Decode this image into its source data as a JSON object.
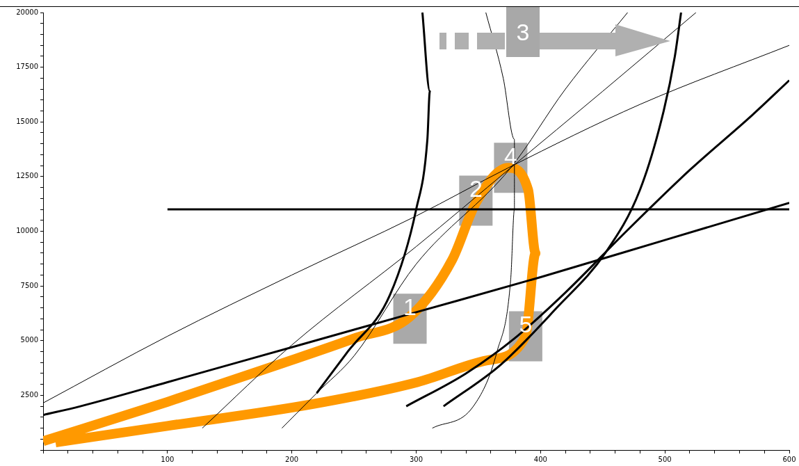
{
  "chart_data": {
    "type": "line",
    "xlim": [
      0,
      600
    ],
    "ylim": [
      0,
      20000
    ],
    "xticks": [
      {
        "value": 0,
        "label": null
      },
      {
        "value": 20,
        "label": null
      },
      {
        "value": 40,
        "label": null
      },
      {
        "value": 60,
        "label": null
      },
      {
        "value": 80,
        "label": null
      },
      100,
      {
        "value": 120,
        "label": null
      },
      {
        "value": 140,
        "label": null
      },
      {
        "value": 160,
        "label": null
      },
      {
        "value": 180,
        "label": null
      },
      200,
      {
        "value": 220,
        "label": null
      },
      {
        "value": 240,
        "label": null
      },
      {
        "value": 260,
        "label": null
      },
      {
        "value": 280,
        "label": null
      },
      300,
      {
        "value": 320,
        "label": null
      },
      {
        "value": 340,
        "label": null
      },
      {
        "value": 360,
        "label": null
      },
      {
        "value": 380,
        "label": null
      },
      400,
      {
        "value": 420,
        "label": null
      },
      {
        "value": 440,
        "label": null
      },
      {
        "value": 460,
        "label": null
      },
      {
        "value": 480,
        "label": null
      },
      500,
      {
        "value": 520,
        "label": null
      },
      {
        "value": 540,
        "label": null
      },
      {
        "value": 560,
        "label": null
      },
      {
        "value": 580,
        "label": null
      },
      600
    ],
    "yticks": [
      {
        "value": 0,
        "label": null
      },
      {
        "value": 500,
        "label": null
      },
      {
        "value": 1000,
        "label": null
      },
      {
        "value": 1500,
        "label": null
      },
      {
        "value": 2000,
        "label": null
      },
      2500,
      {
        "value": 3000,
        "label": null
      },
      {
        "value": 3500,
        "label": null
      },
      {
        "value": 4000,
        "label": null
      },
      {
        "value": 4500,
        "label": null
      },
      5000,
      {
        "value": 5500,
        "label": null
      },
      {
        "value": 6000,
        "label": null
      },
      {
        "value": 6500,
        "label": null
      },
      {
        "value": 7000,
        "label": null
      },
      7500,
      {
        "value": 8000,
        "label": null
      },
      {
        "value": 8500,
        "label": null
      },
      {
        "value": 9000,
        "label": null
      },
      {
        "value": 9500,
        "label": null
      },
      10000,
      {
        "value": 10500,
        "label": null
      },
      {
        "value": 11000,
        "label": null
      },
      {
        "value": 11500,
        "label": null
      },
      {
        "value": 12000,
        "label": null
      },
      12500,
      {
        "value": 13000,
        "label": null
      },
      {
        "value": 13500,
        "label": null
      },
      {
        "value": 14000,
        "label": null
      },
      {
        "value": 14500,
        "label": null
      },
      15000,
      {
        "value": 15500,
        "label": null
      },
      {
        "value": 16000,
        "label": null
      },
      {
        "value": 16500,
        "label": null
      },
      {
        "value": 17000,
        "label": null
      },
      17500,
      {
        "value": 18000,
        "label": null
      },
      {
        "value": 18500,
        "label": null
      },
      {
        "value": 19000,
        "label": null
      },
      {
        "value": 19500,
        "label": null
      },
      20000
    ],
    "grid": false,
    "legend": false,
    "marker": "none",
    "series": [
      {
        "color": "#000000",
        "x": [
          100,
          600
        ],
        "values": [
          11000,
          11000
        ]
      },
      {
        "color": "#000000",
        "x": [
          0,
          30,
          100,
          200,
          300,
          400,
          500,
          600
        ],
        "values": [
          1600,
          2000,
          3100,
          4700,
          6300,
          7900,
          9600,
          11300
        ]
      },
      {
        "color": "#000000",
        "x": [
          292,
          340,
          379,
          420,
          469,
          520,
          570,
          600
        ],
        "values": [
          2000,
          3500,
          5100,
          7200,
          10000,
          12800,
          15300,
          16900
        ]
      },
      {
        "color": "#000000",
        "x": [
          322,
          368,
          413,
          452,
          480,
          499,
          508,
          513
        ],
        "values": [
          2000,
          3900,
          6500,
          9000,
          11900,
          15500,
          18000,
          20000
        ]
      },
      {
        "color": "#000000",
        "x": [
          220,
          245,
          279,
          300,
          309,
          311,
          305
        ],
        "values": [
          2600,
          4500,
          7100,
          11000,
          14200,
          16400,
          20000
        ]
      },
      {
        "color": "#000000",
        "x": [
          0,
          100,
          200,
          300,
          374,
          480,
          600
        ],
        "values": [
          2150,
          5200,
          8000,
          10700,
          12900,
          15800,
          18500
        ]
      },
      {
        "color": "#000000",
        "x": [
          128,
          200,
          300,
          376,
          450,
          525
        ],
        "values": [
          1000,
          4800,
          9300,
          12900,
          16400,
          20000
        ]
      },
      {
        "color": "#000000",
        "x": [
          192,
          220,
          250,
          300,
          376,
          420,
          470
        ],
        "values": [
          1000,
          2600,
          4300,
          8500,
          12900,
          16500,
          20000
        ]
      },
      {
        "color": "#000000",
        "x": [
          356,
          370,
          379,
          379,
          376,
          365,
          346,
          313
        ],
        "values": [
          20000,
          17000,
          14200,
          11000,
          7800,
          4500,
          2000,
          1000
        ]
      },
      {
        "color": "#ff9900",
        "x": [
          0,
          100,
          189,
          250,
          295,
          329,
          348,
          374,
          390,
          396,
          388,
          357,
          301,
          217,
          100,
          10
        ],
        "values": [
          400,
          2200,
          3900,
          5100,
          6100,
          8700,
          11300,
          12900,
          11900,
          9000,
          5200,
          4100,
          3100,
          2100,
          1100,
          350
        ]
      }
    ],
    "annotations": [
      {
        "text": "1",
        "x": 295,
        "y": 6000
      },
      {
        "text": "2",
        "x": 348,
        "y": 11400
      },
      "3",
      {
        "text": "4",
        "x": 376,
        "y": 12900
      },
      {
        "text": "5",
        "x": 388,
        "y": 5200
      }
    ]
  }
}
